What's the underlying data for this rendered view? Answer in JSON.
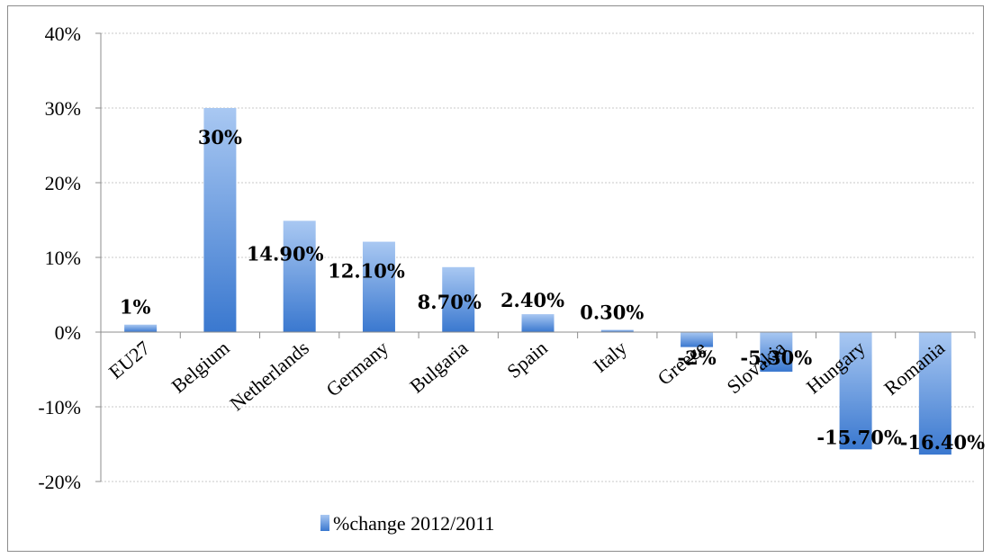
{
  "chart_data": {
    "type": "bar",
    "title": "",
    "xlabel": "",
    "ylabel": "",
    "categories": [
      "EU27",
      "Belgium",
      "Netherlands",
      "Germany",
      "Bulgaria",
      "Spain",
      "Italy",
      "Greece",
      "Slovakia",
      "Hungary",
      "Romania"
    ],
    "series": [
      {
        "name": "%change 2012/2011",
        "values": [
          1,
          30,
          14.9,
          12.1,
          8.7,
          2.4,
          0.3,
          -2,
          -5.3,
          -15.7,
          -16.4
        ],
        "data_labels": [
          "1%",
          "30%",
          "14.90%",
          "12.10%",
          "8.70%",
          "2.40%",
          "0.30%",
          "-2%",
          "-5.30%",
          "-15.70%",
          "-16.40%"
        ],
        "color": "#4a86d4"
      }
    ],
    "ylim": [
      -20,
      40
    ],
    "yticks": [
      -20,
      -10,
      0,
      10,
      20,
      30,
      40
    ],
    "ytick_labels": [
      "-20%",
      "-10%",
      "0%",
      "10%",
      "20%",
      "30%",
      "40%"
    ],
    "grid": true,
    "legend_position": "bottom"
  },
  "colors": {
    "bar_light": "#a9c8f2",
    "bar_dark": "#3a78cf",
    "grid": "#c8c8c8",
    "axis": "#8c8c8c"
  }
}
